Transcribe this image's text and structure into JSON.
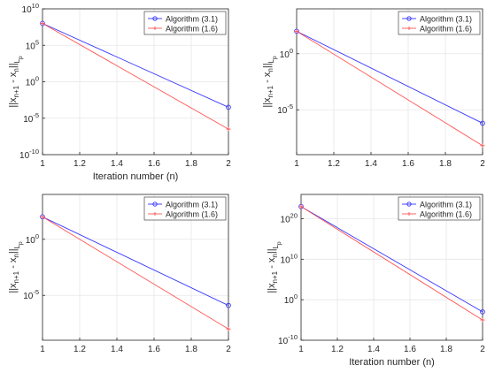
{
  "chart_data": [
    {
      "type": "line",
      "xlabel": "Iteration number (n)",
      "ylabel": "||x_{n+1} - x_n||_{L_p}",
      "yscale": "log",
      "xlim": [
        1,
        2
      ],
      "ylim_exp": [
        -10,
        10
      ],
      "x_ticks": [
        "1",
        "1.2",
        "1.4",
        "1.6",
        "1.8",
        "2"
      ],
      "y_ticks": [
        {
          "exp": 10,
          "label": "10^10"
        },
        {
          "exp": 5,
          "label": "10^5"
        },
        {
          "exp": 0,
          "label": "10^0"
        },
        {
          "exp": -5,
          "label": "10^-5"
        },
        {
          "exp": -10,
          "label": "10^-10"
        }
      ],
      "grid": true,
      "legend_position": "top-right",
      "series": [
        {
          "name": "Algorithm (3.1)",
          "color": "#3333ff",
          "marker": "circle",
          "x": [
            1,
            2
          ],
          "y_exp": [
            8.0,
            -3.5
          ]
        },
        {
          "name": "Algorithm (1.6)",
          "color": "#ff5555",
          "marker": "plus",
          "x": [
            1,
            2
          ],
          "y_exp": [
            8.0,
            -6.5
          ]
        }
      ]
    },
    {
      "type": "line",
      "xlabel": "",
      "ylabel": "||x_{n+1} - x_n||_{L_p}",
      "yscale": "log",
      "xlim": [
        1,
        2
      ],
      "ylim_exp": [
        -9,
        4
      ],
      "x_ticks": [
        "1",
        "1.2",
        "1.4",
        "1.6",
        "1.8",
        "2"
      ],
      "y_ticks": [
        {
          "exp": 0,
          "label": "10^0"
        },
        {
          "exp": -5,
          "label": "10^-5"
        }
      ],
      "grid": true,
      "legend_position": "top-right",
      "series": [
        {
          "name": "Algorithm (3.1)",
          "color": "#3333ff",
          "marker": "circle",
          "x": [
            1,
            2
          ],
          "y_exp": [
            2.0,
            -6.2
          ]
        },
        {
          "name": "Algorithm (1.6)",
          "color": "#ff5555",
          "marker": "plus",
          "x": [
            1,
            2
          ],
          "y_exp": [
            2.0,
            -8.2
          ]
        }
      ]
    },
    {
      "type": "line",
      "xlabel": "",
      "ylabel": "||x_{n+1} - x_n||_{L_p}",
      "yscale": "log",
      "xlim": [
        1,
        2
      ],
      "ylim_exp": [
        -9,
        4
      ],
      "x_ticks": [
        "1",
        "1.2",
        "1.4",
        "1.6",
        "1.8",
        "2"
      ],
      "y_ticks": [
        {
          "exp": 0,
          "label": "10^0"
        },
        {
          "exp": -5,
          "label": "10^-5"
        }
      ],
      "grid": true,
      "legend_position": "top-right",
      "series": [
        {
          "name": "Algorithm (3.1)",
          "color": "#3333ff",
          "marker": "circle",
          "x": [
            1,
            2
          ],
          "y_exp": [
            2.0,
            -5.9
          ]
        },
        {
          "name": "Algorithm (1.6)",
          "color": "#ff5555",
          "marker": "plus",
          "x": [
            1,
            2
          ],
          "y_exp": [
            2.0,
            -8.0
          ]
        }
      ]
    },
    {
      "type": "line",
      "xlabel": "Iteration number (n)",
      "ylabel": "||x_{n+1} - x_n||_{L_p}",
      "yscale": "log",
      "xlim": [
        1,
        2
      ],
      "ylim_exp": [
        -10,
        26
      ],
      "x_ticks": [
        "1",
        "1.2",
        "1.4",
        "1.6",
        "1.8",
        "2"
      ],
      "y_ticks": [
        {
          "exp": 20,
          "label": "10^20"
        },
        {
          "exp": 10,
          "label": "10^10"
        },
        {
          "exp": 0,
          "label": "10^0"
        },
        {
          "exp": -10,
          "label": "10^-10"
        }
      ],
      "grid": true,
      "legend_position": "top-right",
      "series": [
        {
          "name": "Algorithm (3.1)",
          "color": "#3333ff",
          "marker": "circle",
          "x": [
            1,
            2
          ],
          "y_exp": [
            23.0,
            -3.0
          ]
        },
        {
          "name": "Algorithm (1.6)",
          "color": "#ff5555",
          "marker": "plus",
          "x": [
            1,
            2
          ],
          "y_exp": [
            23.0,
            -5.0
          ]
        }
      ]
    }
  ]
}
